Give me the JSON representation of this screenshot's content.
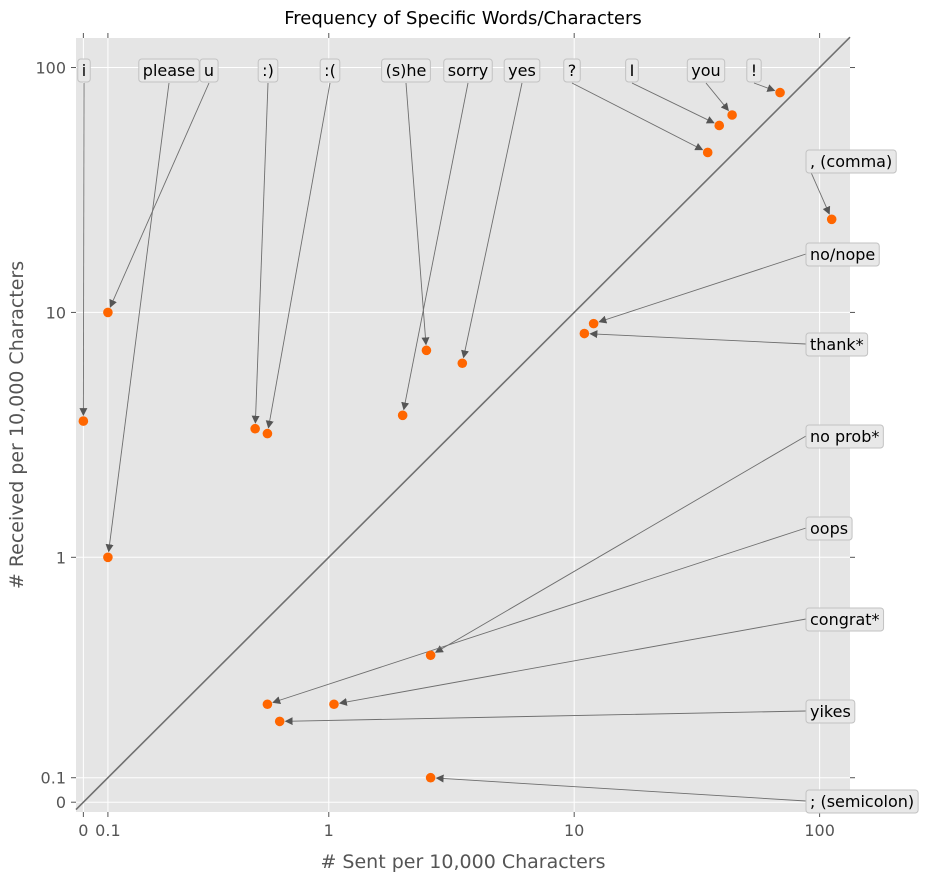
{
  "chart_data": {
    "type": "scatter",
    "title": "Frequency of Specific Words/Characters",
    "xlabel": "# Sent per 10,000 Characters",
    "ylabel": "# Received per 10,000 Characters",
    "scale": "symlog",
    "xlim": [
      -0.03,
      133
    ],
    "ylim": [
      -0.04,
      132
    ],
    "x_ticks": [
      {
        "value": 0,
        "label": "0"
      },
      {
        "value": 0.1,
        "label": "0.1"
      },
      {
        "value": 1,
        "label": "1"
      },
      {
        "value": 10,
        "label": "10"
      },
      {
        "value": 100,
        "label": "100"
      }
    ],
    "y_ticks": [
      {
        "value": 0,
        "label": "0"
      },
      {
        "value": 0.1,
        "label": "0.1"
      },
      {
        "value": 1,
        "label": "1"
      },
      {
        "value": 10,
        "label": "10"
      },
      {
        "value": 100,
        "label": "100"
      }
    ],
    "diagonal": "y = x",
    "grid": true,
    "marker_color": "#ff6600",
    "points": [
      {
        "label": "i",
        "x": 0,
        "y": 3.6,
        "label_pos": "top"
      },
      {
        "label": "please",
        "x": 0.1,
        "y": 1.0,
        "label_pos": "top"
      },
      {
        "label": "u",
        "x": 0.1,
        "y": 10.0,
        "label_pos": "top"
      },
      {
        "label": ":)",
        "x": 0.7,
        "y": 3.35,
        "label_pos": "top"
      },
      {
        "label": ":(",
        "x": 0.75,
        "y": 3.2,
        "label_pos": "top"
      },
      {
        "label": "(s)he",
        "x": 2.5,
        "y": 7.0,
        "label_pos": "top"
      },
      {
        "label": "sorry",
        "x": 2.0,
        "y": 3.8,
        "label_pos": "top"
      },
      {
        "label": "yes",
        "x": 3.5,
        "y": 6.2,
        "label_pos": "top"
      },
      {
        "label": "?",
        "x": 35,
        "y": 45,
        "label_pos": "top"
      },
      {
        "label": "I",
        "x": 39,
        "y": 58,
        "label_pos": "top"
      },
      {
        "label": "you",
        "x": 44,
        "y": 64,
        "label_pos": "top"
      },
      {
        "label": "!",
        "x": 69,
        "y": 79,
        "label_pos": "top"
      },
      {
        "label": ", (comma)",
        "x": 112,
        "y": 24,
        "label_pos": "right"
      },
      {
        "label": "no/nope",
        "x": 12,
        "y": 9.0,
        "label_pos": "right"
      },
      {
        "label": "thank*",
        "x": 11,
        "y": 8.2,
        "label_pos": "right"
      },
      {
        "label": "no prob*",
        "x": 2.6,
        "y": 0.6,
        "label_pos": "right"
      },
      {
        "label": "oops",
        "x": 0.75,
        "y": 0.4,
        "label_pos": "right"
      },
      {
        "label": "congrat*",
        "x": 1.05,
        "y": 0.4,
        "label_pos": "right"
      },
      {
        "label": "yikes",
        "x": 0.8,
        "y": 0.33,
        "label_pos": "right"
      },
      {
        "label": "; (semicolon)",
        "x": 2.6,
        "y": 0.1,
        "label_pos": "right"
      }
    ]
  }
}
